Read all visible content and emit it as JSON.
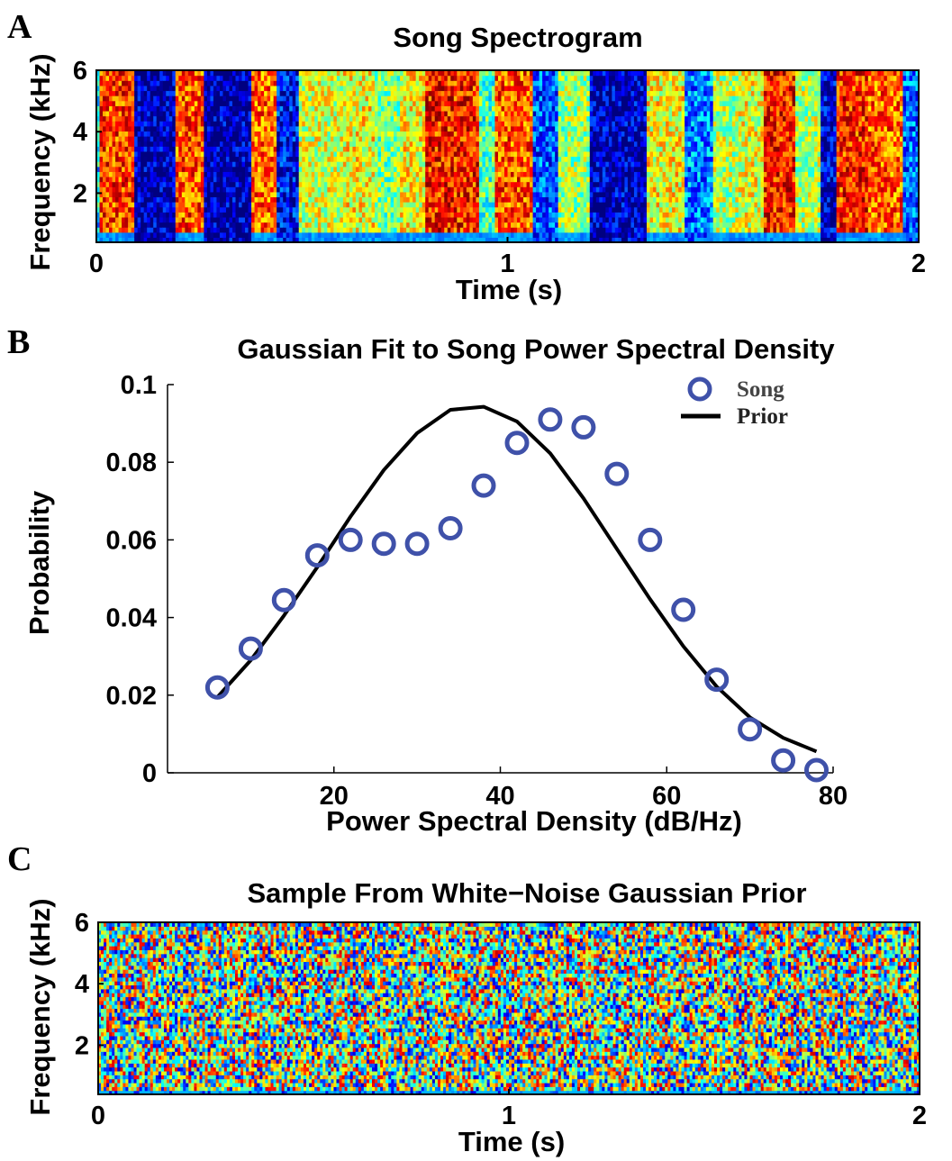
{
  "chart_data": [
    {
      "panel": "A",
      "type": "heatmap",
      "title": "Song Spectrogram",
      "xlabel": "Time (s)",
      "ylabel": "Frequency (kHz)",
      "xlim": [
        0,
        2
      ],
      "ylim": [
        0.4,
        6
      ],
      "xticks": [
        "0",
        "1",
        "2"
      ],
      "yticks": [
        "2",
        "4",
        "6"
      ],
      "colormap": "jet",
      "segments": [
        {
          "start": 0.0,
          "end": 0.01,
          "level": 0.35
        },
        {
          "start": 0.01,
          "end": 0.09,
          "level": 0.82
        },
        {
          "start": 0.09,
          "end": 0.19,
          "level": 0.05
        },
        {
          "start": 0.19,
          "end": 0.26,
          "level": 0.8
        },
        {
          "start": 0.26,
          "end": 0.38,
          "level": 0.05
        },
        {
          "start": 0.38,
          "end": 0.44,
          "level": 0.78
        },
        {
          "start": 0.44,
          "end": 0.49,
          "level": 0.12
        },
        {
          "start": 0.49,
          "end": 0.6,
          "level": 0.58
        },
        {
          "start": 0.6,
          "end": 0.68,
          "level": 0.62
        },
        {
          "start": 0.68,
          "end": 0.74,
          "level": 0.5
        },
        {
          "start": 0.74,
          "end": 0.8,
          "level": 0.62
        },
        {
          "start": 0.8,
          "end": 0.93,
          "level": 0.85
        },
        {
          "start": 0.93,
          "end": 0.97,
          "level": 0.45
        },
        {
          "start": 0.97,
          "end": 1.06,
          "level": 0.8
        },
        {
          "start": 1.06,
          "end": 1.12,
          "level": 0.2
        },
        {
          "start": 1.12,
          "end": 1.2,
          "level": 0.52
        },
        {
          "start": 1.2,
          "end": 1.34,
          "level": 0.06
        },
        {
          "start": 1.34,
          "end": 1.43,
          "level": 0.62
        },
        {
          "start": 1.43,
          "end": 1.5,
          "level": 0.25
        },
        {
          "start": 1.5,
          "end": 1.56,
          "level": 0.55
        },
        {
          "start": 1.56,
          "end": 1.62,
          "level": 0.6
        },
        {
          "start": 1.62,
          "end": 1.7,
          "level": 0.86
        },
        {
          "start": 1.7,
          "end": 1.76,
          "level": 0.55
        },
        {
          "start": 1.76,
          "end": 1.8,
          "level": 0.08
        },
        {
          "start": 1.8,
          "end": 1.88,
          "level": 0.84
        },
        {
          "start": 1.88,
          "end": 1.96,
          "level": 0.78
        },
        {
          "start": 1.96,
          "end": 2.0,
          "level": 0.22
        }
      ]
    },
    {
      "panel": "B",
      "type": "line",
      "title": "Gaussian Fit to Song Power Spectral Density",
      "xlabel": "Power Spectral Density (dB/Hz)",
      "ylabel": "Probability",
      "xlim": [
        0,
        80
      ],
      "ylim": [
        0,
        0.1
      ],
      "xticks": [
        "20",
        "40",
        "60",
        "80"
      ],
      "yticks": [
        "0",
        "0.02",
        "0.04",
        "0.06",
        "0.08",
        "0.1"
      ],
      "legend_position": "top-right",
      "series": [
        {
          "name": "Song",
          "marker": "circle",
          "color": "#3f51a9",
          "x": [
            6,
            10,
            14,
            18,
            22,
            26,
            30,
            34,
            38,
            42,
            46,
            50,
            54,
            58,
            62,
            66,
            70,
            74,
            78
          ],
          "y": [
            0.022,
            0.032,
            0.0445,
            0.056,
            0.06,
            0.059,
            0.059,
            0.063,
            0.074,
            0.085,
            0.091,
            0.089,
            0.077,
            0.06,
            0.042,
            0.024,
            0.0112,
            0.0032,
            0.0007
          ]
        },
        {
          "name": "Prior",
          "line": "solid",
          "color": "#000000",
          "x": [
            6,
            10,
            14,
            18,
            22,
            26,
            30,
            34,
            38,
            42,
            46,
            50,
            54,
            58,
            62,
            66,
            70,
            74,
            78
          ],
          "y": [
            0.0195,
            0.029,
            0.0405,
            0.053,
            0.066,
            0.078,
            0.0875,
            0.0935,
            0.0943,
            0.0905,
            0.0823,
            0.0707,
            0.0577,
            0.0447,
            0.0326,
            0.0222,
            0.0143,
            0.009,
            0.0055
          ]
        }
      ]
    },
    {
      "panel": "C",
      "type": "heatmap",
      "title": "Sample From White−Noise Gaussian Prior",
      "xlabel": "Time (s)",
      "ylabel": "Frequency (kHz)",
      "xlim": [
        0,
        2
      ],
      "ylim": [
        0.4,
        6
      ],
      "xticks": [
        "0",
        "1",
        "2"
      ],
      "yticks": [
        "2",
        "4",
        "6"
      ],
      "colormap": "jet",
      "pattern": "white-noise",
      "mean_level": 0.5
    }
  ],
  "panel_letters": [
    "A",
    "B",
    "C"
  ]
}
